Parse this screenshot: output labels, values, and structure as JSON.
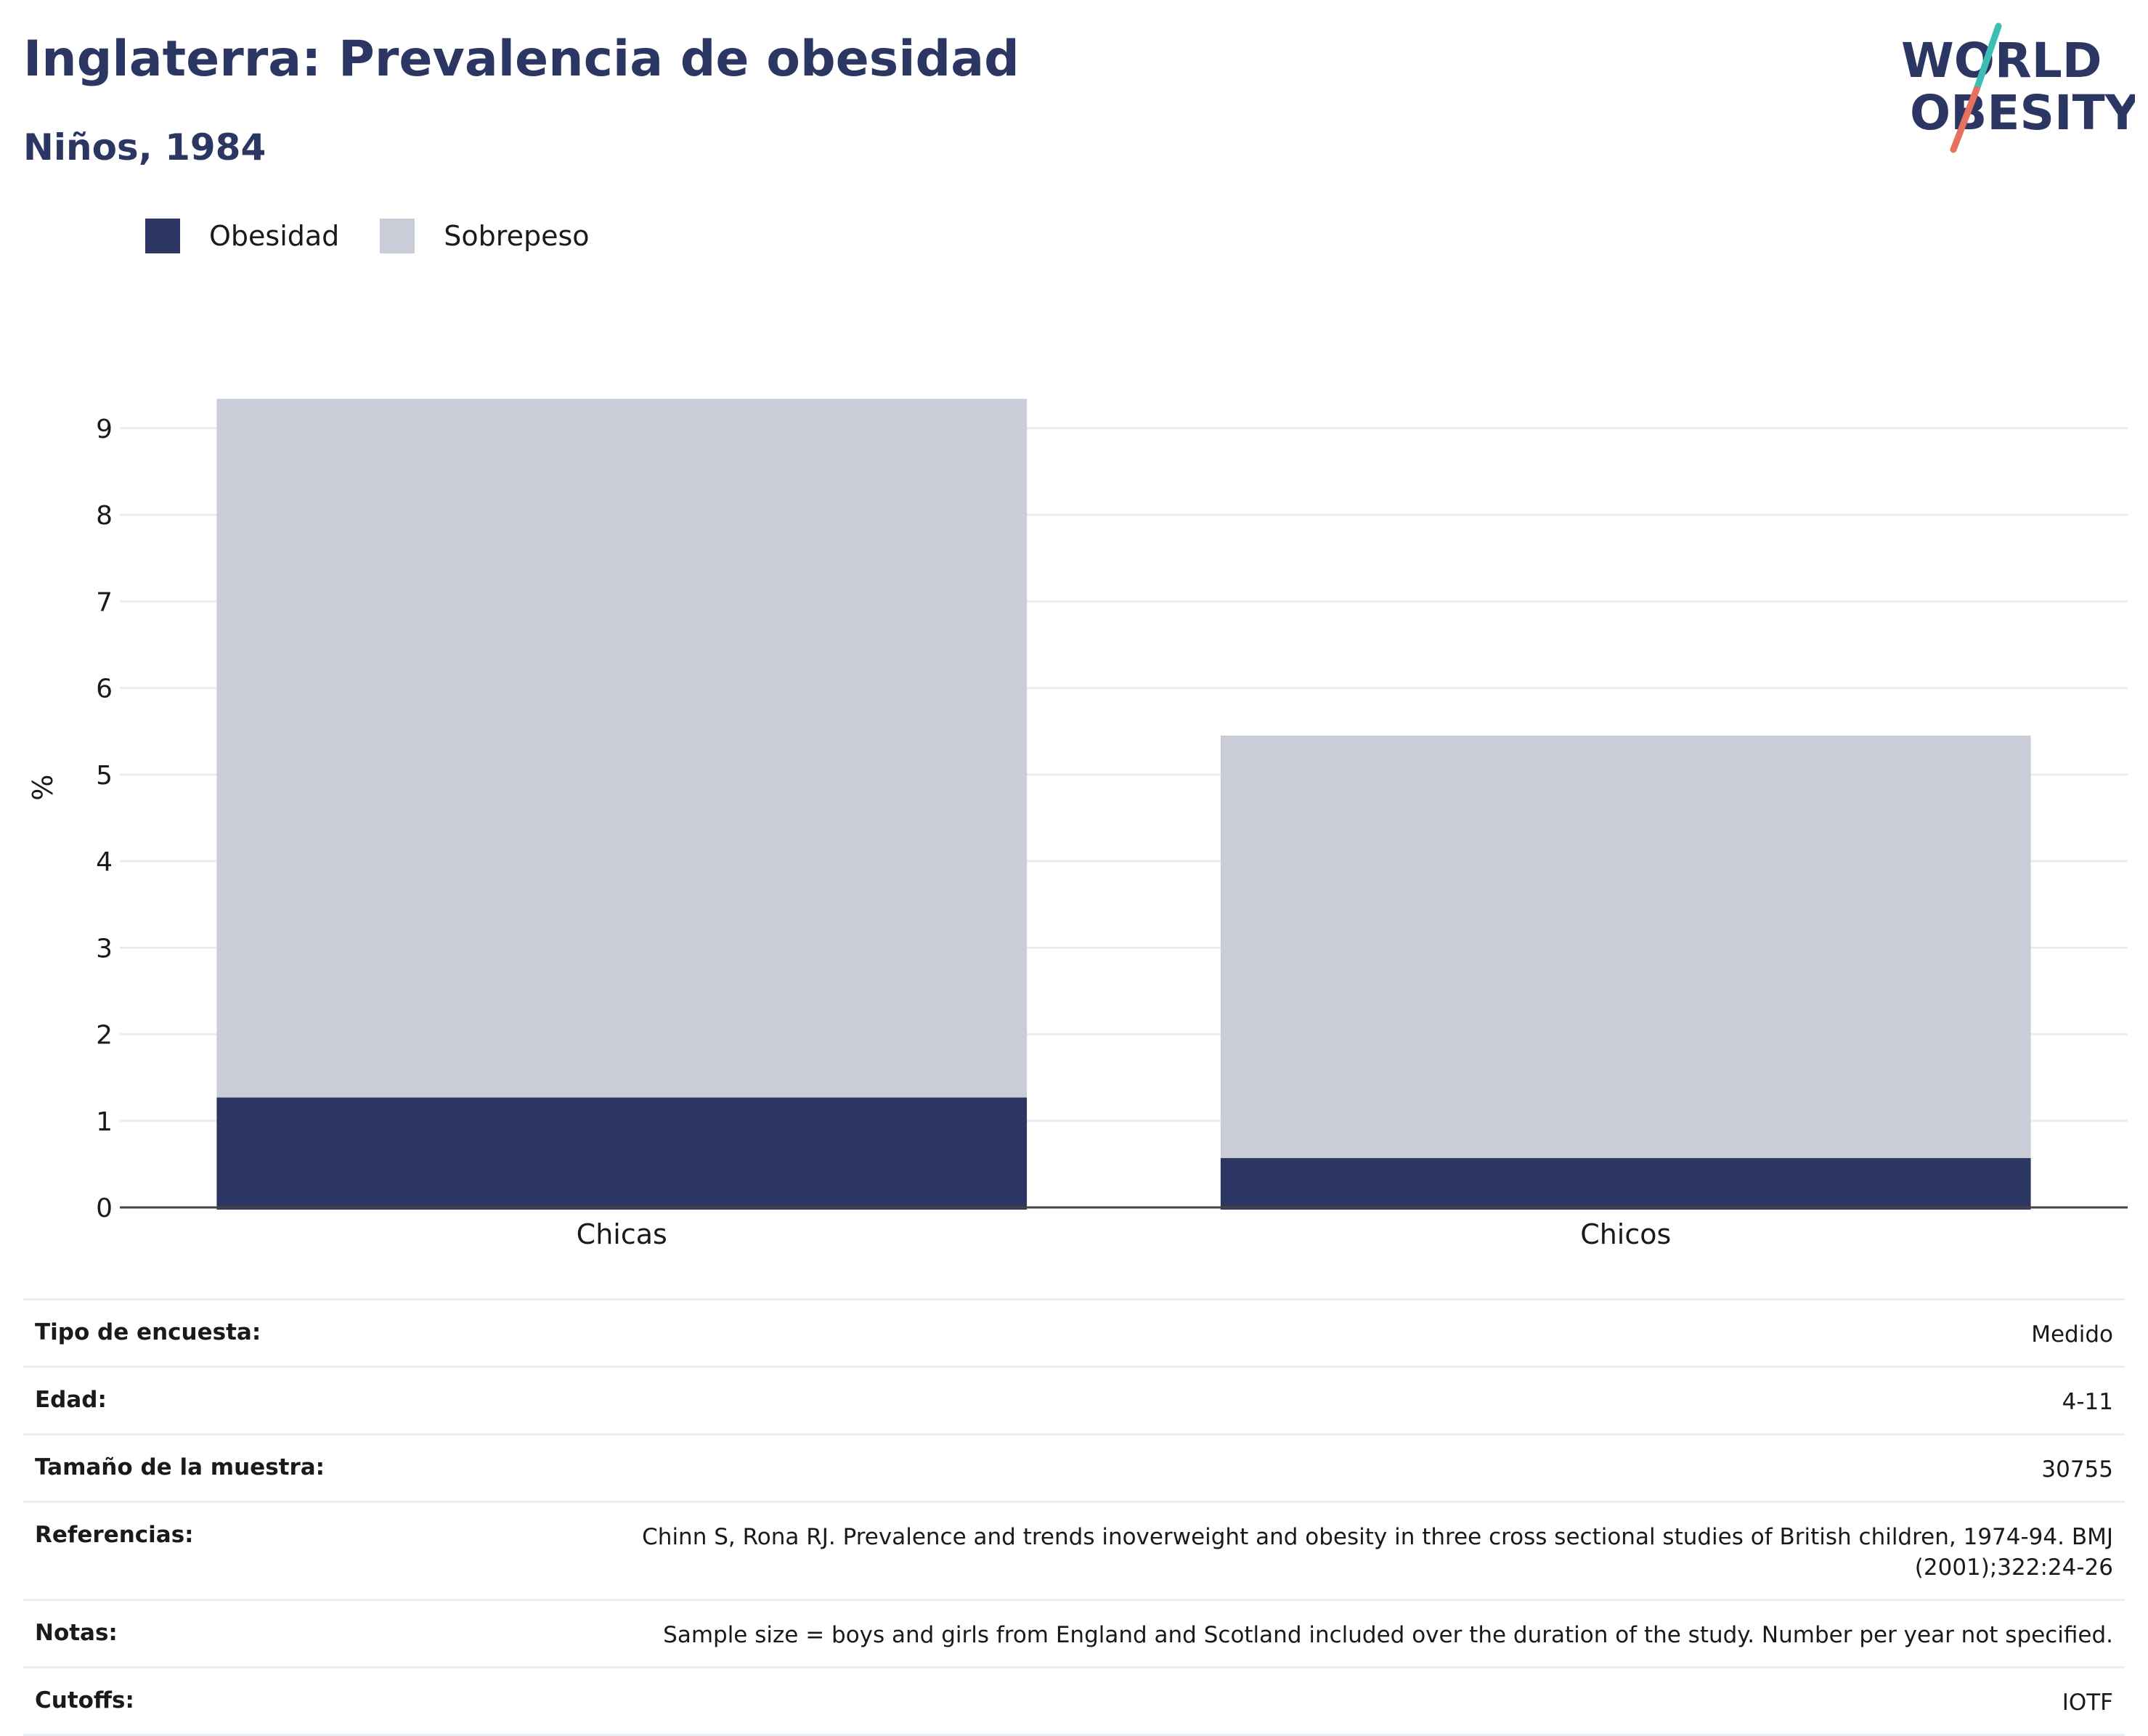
{
  "title": "Inglaterra: Prevalencia de obesidad",
  "subtitle": "Niños, 1984",
  "logo": {
    "line1": "WORLD",
    "line2": "OBESITY"
  },
  "colors": {
    "obesidad": "#2b3663",
    "sobrepeso": "#cacdd8",
    "grid": "#ebebf0",
    "axis": "#444444",
    "title": "#2b3663",
    "logo_teal": "#3bbfb5",
    "logo_coral": "#e8705f"
  },
  "legend": [
    {
      "label": "Obesidad",
      "color": "#2b3663"
    },
    {
      "label": "Sobrepeso",
      "color": "#cacdd8"
    }
  ],
  "chart_data": {
    "type": "bar",
    "stacked": true,
    "categories": [
      "Chicas",
      "Chicos"
    ],
    "series": [
      {
        "name": "Obesidad",
        "values": [
          1.27,
          0.57
        ]
      },
      {
        "name": "Sobrepeso",
        "values": [
          8.07,
          4.88
        ]
      }
    ],
    "ylabel": "%",
    "ylim": [
      0,
      9.6
    ],
    "yticks": [
      0,
      1,
      2,
      3,
      4,
      5,
      6,
      7,
      8,
      9
    ],
    "grid": true,
    "legend_position": "top-left"
  },
  "info": [
    {
      "label": "Tipo de encuesta:",
      "value": "Medido"
    },
    {
      "label": "Edad:",
      "value": "4-11"
    },
    {
      "label": "Tamaño de la muestra:",
      "value": "30755"
    },
    {
      "label": "Referencias:",
      "value": "Chinn S, Rona RJ. Prevalence and trends inoverweight and obesity in three cross sectional studies of British children, 1974-94. BMJ (2001);322:24-26"
    },
    {
      "label": "Notas:",
      "value": "Sample size = boys and girls from England and Scotland included over the duration of the study. Number per year not specified."
    },
    {
      "label": "Cutoffs:",
      "value": "IOTF"
    }
  ]
}
